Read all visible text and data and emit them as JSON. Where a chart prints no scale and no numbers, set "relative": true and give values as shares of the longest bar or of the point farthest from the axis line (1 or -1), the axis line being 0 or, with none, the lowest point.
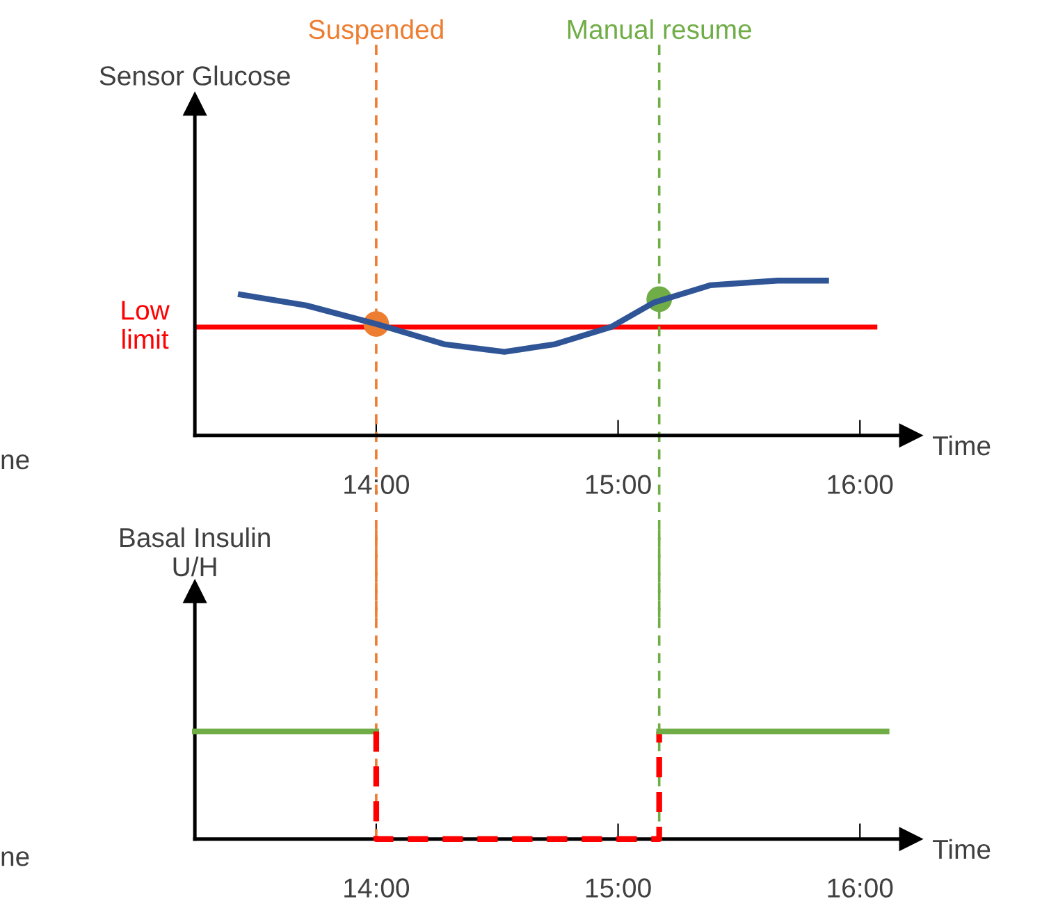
{
  "chart_data": [
    {
      "type": "line",
      "ylabel": "Sensor Glucose",
      "xlabel": "Time",
      "relative": true,
      "xlim": [
        13.25,
        16.21
      ],
      "xticks": [
        {
          "value": 14,
          "label": "14:00"
        },
        {
          "value": 15,
          "label": "15:00"
        },
        {
          "value": 16,
          "label": "16:00"
        }
      ],
      "tick_labels": "x",
      "grid": false,
      "legend": false,
      "series": [
        {
          "color": "#2f5597",
          "x": [
            13.44,
            13.71,
            14.0,
            14.28,
            14.53,
            14.74,
            14.97,
            15.15,
            15.38,
            15.66,
            15.86
          ],
          "values": [
            0.91,
            0.84,
            0.72,
            0.59,
            0.54,
            0.59,
            0.7,
            0.86,
            0.97,
            1.0,
            1.0
          ]
        },
        {
          "type": "scatter",
          "color": "#ed7d31",
          "marker": "circle",
          "x": [
            14.0
          ],
          "values": [
            0.72
          ]
        },
        {
          "type": "scatter",
          "color": "#70ad47",
          "marker": "circle",
          "x": [
            15.17
          ],
          "values": [
            0.88
          ]
        }
      ],
      "ref_lines": [
        {
          "axis": "y",
          "value": 0.7,
          "label": "Low\nlimit",
          "color": "#ff0000",
          "line_style": "solid"
        },
        {
          "axis": "x",
          "value": 14.0,
          "label": "Suspended",
          "color": "#ed7d31",
          "line_style": "dashed"
        },
        {
          "axis": "x",
          "value": 15.17,
          "label": "Manual resume",
          "color": "#70ad47",
          "line_style": "dashed"
        }
      ],
      "annotations": [
        "ne"
      ]
    },
    {
      "type": "line",
      "ylabel": "Basal Insulin\nU/H",
      "xlabel": "Time",
      "relative": true,
      "xlim": [
        13.25,
        16.21
      ],
      "xticks": [
        {
          "value": 14,
          "label": "14:00"
        },
        {
          "value": 15,
          "label": "15:00"
        },
        {
          "value": 16,
          "label": "16:00"
        }
      ],
      "tick_labels": "x",
      "grid": false,
      "legend": false,
      "series": [
        {
          "color": "#70ad47",
          "line_style": "solid",
          "x": [
            13.25,
            14.0
          ],
          "values": [
            1,
            1
          ]
        },
        {
          "color": "#ff0000",
          "line_style": "dashed",
          "x": [
            14.0,
            14.0,
            15.17,
            15.17
          ],
          "values": [
            1,
            0,
            0,
            1
          ]
        },
        {
          "color": "#70ad47",
          "line_style": "solid",
          "x": [
            15.17,
            16.11
          ],
          "values": [
            1,
            1
          ]
        }
      ],
      "ref_lines": [
        {
          "axis": "x",
          "value": 14.0,
          "color": "#ed7d31",
          "line_style": "dashed"
        },
        {
          "axis": "x",
          "value": 15.17,
          "color": "#70ad47",
          "line_style": "dashed"
        }
      ],
      "annotations": [
        "ne"
      ]
    }
  ]
}
